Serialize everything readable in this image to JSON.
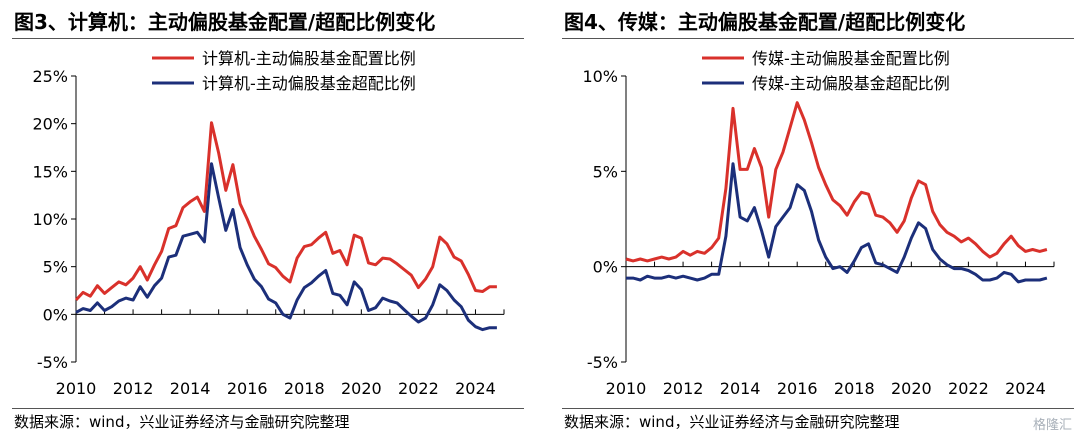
{
  "panels": [
    {
      "title": "图3、计算机：主动偏股基金配置/超配比例变化",
      "source": "数据来源：wind，兴业证券经济与金融研究院整理",
      "chart_data": {
        "type": "line",
        "ylim": [
          -5,
          25
        ],
        "yticks": [
          -5,
          0,
          5,
          10,
          15,
          20,
          25
        ],
        "ytick_labels": [
          "-5%",
          "0%",
          "5%",
          "10%",
          "15%",
          "20%",
          "25%"
        ],
        "xlim": [
          2010,
          2025
        ],
        "xticks": [
          2010,
          2012,
          2014,
          2016,
          2018,
          2020,
          2022,
          2024
        ],
        "xtick_labels": [
          "2010",
          "2012",
          "2014",
          "2016",
          "2018",
          "2020",
          "2022",
          "2024"
        ],
        "legend_position": "top-center",
        "grid": false,
        "series": [
          {
            "name": "计算机-主动偏股基金配置比例",
            "color": "#d9312b",
            "x": [
              2010.0,
              2010.25,
              2010.5,
              2010.75,
              2011.0,
              2011.25,
              2011.5,
              2011.75,
              2012.0,
              2012.25,
              2012.5,
              2012.75,
              2013.0,
              2013.25,
              2013.5,
              2013.75,
              2014.0,
              2014.25,
              2014.5,
              2014.75,
              2015.0,
              2015.25,
              2015.5,
              2015.75,
              2016.0,
              2016.25,
              2016.5,
              2016.75,
              2017.0,
              2017.25,
              2017.5,
              2017.75,
              2018.0,
              2018.25,
              2018.5,
              2018.75,
              2019.0,
              2019.25,
              2019.5,
              2019.75,
              2020.0,
              2020.25,
              2020.5,
              2020.75,
              2021.0,
              2021.25,
              2021.5,
              2021.75,
              2022.0,
              2022.25,
              2022.5,
              2022.75,
              2023.0,
              2023.25,
              2023.5,
              2023.75,
              2024.0,
              2024.25,
              2024.5,
              2024.75
            ],
            "values": [
              1.5,
              2.3,
              1.9,
              3.0,
              2.2,
              2.8,
              3.4,
              3.1,
              3.8,
              5.0,
              3.6,
              5.2,
              6.6,
              9.0,
              9.3,
              11.2,
              11.8,
              12.3,
              10.8,
              20.1,
              16.9,
              13.0,
              15.7,
              11.6,
              10.0,
              8.2,
              6.8,
              5.3,
              4.9,
              4.0,
              3.4,
              5.9,
              7.1,
              7.3,
              8.0,
              8.6,
              6.4,
              6.7,
              5.2,
              8.3,
              8.0,
              5.4,
              5.2,
              5.9,
              5.8,
              5.3,
              4.7,
              4.1,
              2.8,
              3.7,
              5.0,
              8.1,
              7.4,
              6.0,
              5.6,
              4.2,
              2.5,
              2.4,
              2.9,
              2.9
            ]
          },
          {
            "name": "计算机-主动偏股基金超配比例",
            "color": "#1c2f7a",
            "x": [
              2010.0,
              2010.25,
              2010.5,
              2010.75,
              2011.0,
              2011.25,
              2011.5,
              2011.75,
              2012.0,
              2012.25,
              2012.5,
              2012.75,
              2013.0,
              2013.25,
              2013.5,
              2013.75,
              2014.0,
              2014.25,
              2014.5,
              2014.75,
              2015.0,
              2015.25,
              2015.5,
              2015.75,
              2016.0,
              2016.25,
              2016.5,
              2016.75,
              2017.0,
              2017.25,
              2017.5,
              2017.75,
              2018.0,
              2018.25,
              2018.5,
              2018.75,
              2019.0,
              2019.25,
              2019.5,
              2019.75,
              2020.0,
              2020.25,
              2020.5,
              2020.75,
              2021.0,
              2021.25,
              2021.5,
              2021.75,
              2022.0,
              2022.25,
              2022.5,
              2022.75,
              2023.0,
              2023.25,
              2023.5,
              2023.75,
              2024.0,
              2024.25,
              2024.5,
              2024.75
            ],
            "values": [
              0.2,
              0.6,
              0.4,
              1.2,
              0.4,
              0.8,
              1.4,
              1.7,
              1.5,
              2.9,
              1.8,
              3.0,
              3.8,
              6.0,
              6.2,
              8.2,
              8.4,
              8.6,
              7.6,
              15.8,
              12.2,
              8.8,
              11.0,
              7.0,
              5.2,
              3.7,
              2.9,
              1.6,
              1.2,
              0.0,
              -0.4,
              1.5,
              2.8,
              3.3,
              4.0,
              4.6,
              2.2,
              2.0,
              1.0,
              3.4,
              2.6,
              0.4,
              0.7,
              1.7,
              1.4,
              1.2,
              0.5,
              -0.2,
              -0.8,
              -0.4,
              1.0,
              3.1,
              2.5,
              1.5,
              0.8,
              -0.6,
              -1.3,
              -1.6,
              -1.4,
              -1.4
            ]
          }
        ]
      }
    },
    {
      "title": "图4、传媒：主动偏股基金配置/超配比例变化",
      "source": "数据来源：wind，兴业证券经济与金融研究院整理",
      "chart_data": {
        "type": "line",
        "ylim": [
          -5,
          10
        ],
        "yticks": [
          -5,
          0,
          5,
          10
        ],
        "ytick_labels": [
          "-5%",
          "0%",
          "5%",
          "10%"
        ],
        "xlim": [
          2010,
          2025
        ],
        "xticks": [
          2010,
          2012,
          2014,
          2016,
          2018,
          2020,
          2022,
          2024
        ],
        "xtick_labels": [
          "2010",
          "2012",
          "2014",
          "2016",
          "2018",
          "2020",
          "2022",
          "2024"
        ],
        "legend_position": "top-center",
        "grid": false,
        "series": [
          {
            "name": "传媒-主动偏股基金配置比例",
            "color": "#d9312b",
            "x": [
              2010.0,
              2010.25,
              2010.5,
              2010.75,
              2011.0,
              2011.25,
              2011.5,
              2011.75,
              2012.0,
              2012.25,
              2012.5,
              2012.75,
              2013.0,
              2013.25,
              2013.5,
              2013.75,
              2014.0,
              2014.25,
              2014.5,
              2014.75,
              2015.0,
              2015.25,
              2015.5,
              2015.75,
              2016.0,
              2016.25,
              2016.5,
              2016.75,
              2017.0,
              2017.25,
              2017.5,
              2017.75,
              2018.0,
              2018.25,
              2018.5,
              2018.75,
              2019.0,
              2019.25,
              2019.5,
              2019.75,
              2020.0,
              2020.25,
              2020.5,
              2020.75,
              2021.0,
              2021.25,
              2021.5,
              2021.75,
              2022.0,
              2022.25,
              2022.5,
              2022.75,
              2023.0,
              2023.25,
              2023.5,
              2023.75,
              2024.0,
              2024.25,
              2024.5,
              2024.75
            ],
            "values": [
              0.4,
              0.3,
              0.4,
              0.3,
              0.4,
              0.5,
              0.4,
              0.5,
              0.8,
              0.6,
              0.8,
              0.7,
              1.0,
              1.5,
              4.1,
              8.3,
              5.1,
              5.1,
              6.2,
              5.2,
              2.6,
              5.1,
              6.0,
              7.3,
              8.6,
              7.7,
              6.5,
              5.2,
              4.3,
              3.5,
              3.2,
              2.7,
              3.4,
              3.9,
              3.8,
              2.7,
              2.6,
              2.3,
              1.8,
              2.4,
              3.6,
              4.5,
              4.3,
              2.9,
              2.2,
              1.8,
              1.6,
              1.3,
              1.5,
              1.2,
              0.8,
              0.5,
              0.7,
              1.2,
              1.6,
              1.1,
              0.8,
              0.9,
              0.8,
              0.9
            ]
          },
          {
            "name": "传媒-主动偏股基金超配比例",
            "color": "#1c2f7a",
            "x": [
              2010.0,
              2010.25,
              2010.5,
              2010.75,
              2011.0,
              2011.25,
              2011.5,
              2011.75,
              2012.0,
              2012.25,
              2012.5,
              2012.75,
              2013.0,
              2013.25,
              2013.5,
              2013.75,
              2014.0,
              2014.25,
              2014.5,
              2014.75,
              2015.0,
              2015.25,
              2015.5,
              2015.75,
              2016.0,
              2016.25,
              2016.5,
              2016.75,
              2017.0,
              2017.25,
              2017.5,
              2017.75,
              2018.0,
              2018.25,
              2018.5,
              2018.75,
              2019.0,
              2019.25,
              2019.5,
              2019.75,
              2020.0,
              2020.25,
              2020.5,
              2020.75,
              2021.0,
              2021.25,
              2021.5,
              2021.75,
              2022.0,
              2022.25,
              2022.5,
              2022.75,
              2023.0,
              2023.25,
              2023.5,
              2023.75,
              2024.0,
              2024.25,
              2024.5,
              2024.75
            ],
            "values": [
              -0.6,
              -0.6,
              -0.7,
              -0.5,
              -0.6,
              -0.6,
              -0.5,
              -0.6,
              -0.5,
              -0.6,
              -0.7,
              -0.6,
              -0.4,
              -0.4,
              1.6,
              5.4,
              2.6,
              2.4,
              3.1,
              1.9,
              0.5,
              2.1,
              2.6,
              3.1,
              4.3,
              4.0,
              2.9,
              1.4,
              0.5,
              -0.1,
              0.0,
              -0.3,
              0.3,
              1.0,
              1.2,
              0.2,
              0.1,
              -0.1,
              -0.3,
              0.5,
              1.5,
              2.3,
              2.0,
              0.9,
              0.4,
              0.1,
              -0.1,
              -0.1,
              -0.2,
              -0.4,
              -0.7,
              -0.7,
              -0.6,
              -0.3,
              -0.4,
              -0.8,
              -0.7,
              -0.7,
              -0.7,
              -0.6
            ]
          }
        ]
      }
    }
  ],
  "watermark": "格隆汇"
}
